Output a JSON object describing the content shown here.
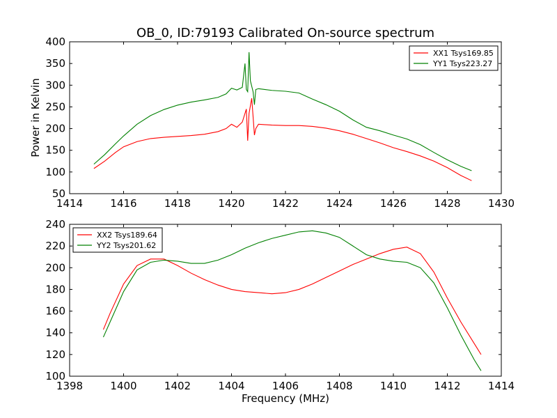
{
  "figure": {
    "title": "OB_0, ID:79193 Calibrated On-source spectrum",
    "background": "#ffffff"
  },
  "chart_data": [
    {
      "type": "line",
      "title": "OB_0, ID:79193 Calibrated On-source spectrum",
      "xlabel": "",
      "ylabel": "Power in Kelvin",
      "xlim": [
        1414,
        1430
      ],
      "ylim": [
        50,
        400
      ],
      "xticks": [
        1414,
        1416,
        1418,
        1420,
        1422,
        1424,
        1426,
        1428,
        1430
      ],
      "yticks": [
        50,
        100,
        150,
        200,
        250,
        300,
        350,
        400
      ],
      "grid": false,
      "legend": "top-right",
      "series": [
        {
          "name": "XX1 Tsys169.85",
          "color": "#ff0000",
          "x": [
            1414.9,
            1415.3,
            1415.7,
            1416.0,
            1416.5,
            1417.0,
            1417.5,
            1418.0,
            1418.5,
            1419.0,
            1419.5,
            1419.8,
            1420.0,
            1420.2,
            1420.4,
            1420.55,
            1420.6,
            1420.65,
            1420.75,
            1420.85,
            1420.9,
            1421.0,
            1421.5,
            1422.0,
            1422.5,
            1423.0,
            1423.5,
            1424.0,
            1424.5,
            1425.0,
            1425.5,
            1426.0,
            1426.5,
            1427.0,
            1427.5,
            1428.0,
            1428.5,
            1428.9
          ],
          "y": [
            108,
            125,
            145,
            158,
            170,
            177,
            180,
            182,
            184,
            187,
            193,
            200,
            210,
            203,
            215,
            245,
            172,
            235,
            270,
            185,
            200,
            210,
            208,
            207,
            207,
            205,
            201,
            195,
            187,
            177,
            167,
            156,
            147,
            137,
            125,
            110,
            92,
            80
          ]
        },
        {
          "name": "YY1 Tsys223.27",
          "color": "#008000",
          "x": [
            1414.9,
            1415.3,
            1415.7,
            1416.0,
            1416.5,
            1417.0,
            1417.5,
            1418.0,
            1418.5,
            1419.0,
            1419.5,
            1419.8,
            1420.0,
            1420.2,
            1420.4,
            1420.5,
            1420.55,
            1420.6,
            1420.65,
            1420.7,
            1420.8,
            1420.85,
            1420.9,
            1421.0,
            1421.5,
            1422.0,
            1422.5,
            1423.0,
            1423.5,
            1424.0,
            1424.5,
            1425.0,
            1425.5,
            1426.0,
            1426.5,
            1427.0,
            1427.5,
            1428.0,
            1428.5,
            1428.9
          ],
          "y": [
            118,
            140,
            165,
            183,
            210,
            230,
            244,
            254,
            261,
            266,
            272,
            280,
            293,
            289,
            295,
            350,
            290,
            285,
            376,
            310,
            285,
            255,
            290,
            292,
            288,
            286,
            282,
            268,
            255,
            240,
            220,
            203,
            195,
            185,
            176,
            163,
            145,
            128,
            113,
            103
          ]
        }
      ]
    },
    {
      "type": "line",
      "title": "",
      "xlabel": "Frequency (MHz)",
      "ylabel": "",
      "xlim": [
        1398,
        1414
      ],
      "ylim": [
        100,
        240
      ],
      "xticks": [
        1398,
        1400,
        1402,
        1404,
        1406,
        1408,
        1410,
        1412,
        1414
      ],
      "yticks": [
        100,
        120,
        140,
        160,
        180,
        200,
        220,
        240
      ],
      "grid": false,
      "legend": "top-left",
      "series": [
        {
          "name": "XX2 Tsys189.64",
          "color": "#ff0000",
          "x": [
            1399.25,
            1399.5,
            1400.0,
            1400.5,
            1401.0,
            1401.5,
            1402.0,
            1402.5,
            1403.0,
            1403.5,
            1404.0,
            1404.5,
            1405.0,
            1405.5,
            1406.0,
            1406.5,
            1407.0,
            1407.5,
            1408.0,
            1408.5,
            1409.0,
            1409.5,
            1410.0,
            1410.5,
            1411.0,
            1411.5,
            1412.0,
            1412.5,
            1413.0,
            1413.25
          ],
          "y": [
            143,
            158,
            185,
            202,
            208,
            208,
            202,
            195,
            189,
            184,
            180,
            178,
            177,
            176,
            177,
            180,
            185,
            191,
            197,
            203,
            208,
            213,
            217,
            219,
            213,
            196,
            172,
            150,
            130,
            120
          ]
        },
        {
          "name": "YY2 Tsys201.62",
          "color": "#008000",
          "x": [
            1399.25,
            1399.5,
            1400.0,
            1400.5,
            1401.0,
            1401.5,
            1402.0,
            1402.5,
            1403.0,
            1403.5,
            1404.0,
            1404.5,
            1405.0,
            1405.5,
            1406.0,
            1406.5,
            1407.0,
            1407.5,
            1408.0,
            1408.5,
            1409.0,
            1409.5,
            1410.0,
            1410.5,
            1411.0,
            1411.5,
            1412.0,
            1412.5,
            1413.0,
            1413.25
          ],
          "y": [
            136,
            150,
            178,
            198,
            205,
            207,
            206,
            204,
            204,
            207,
            212,
            218,
            223,
            227,
            230,
            233,
            234,
            232,
            228,
            220,
            212,
            208,
            206,
            205,
            200,
            186,
            163,
            138,
            115,
            105
          ]
        }
      ]
    }
  ]
}
